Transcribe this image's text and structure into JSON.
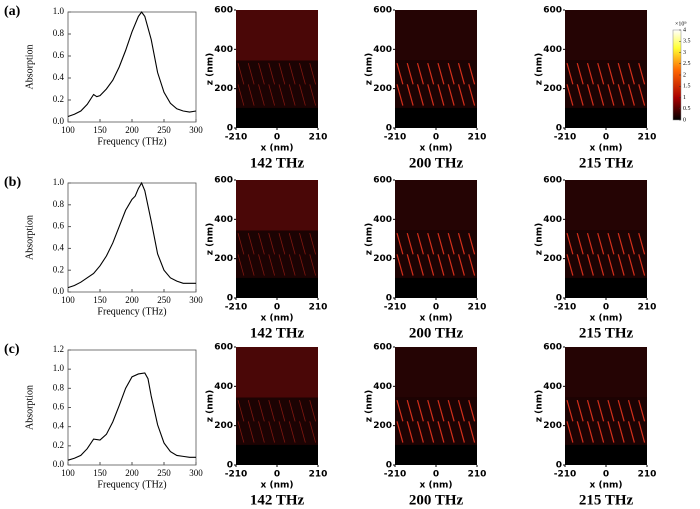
{
  "chart_data": [
    {
      "type": "line",
      "label": "(a)",
      "xlabel": "Frequency (THz)",
      "ylabel": "Absorption",
      "x": [
        100,
        110,
        120,
        130,
        140,
        145,
        150,
        160,
        170,
        180,
        190,
        200,
        210,
        215,
        220,
        230,
        240,
        250,
        260,
        270,
        280,
        290,
        300
      ],
      "values": [
        0.05,
        0.07,
        0.1,
        0.16,
        0.25,
        0.23,
        0.24,
        0.3,
        0.38,
        0.5,
        0.65,
        0.82,
        0.96,
        1.0,
        0.96,
        0.75,
        0.45,
        0.27,
        0.17,
        0.12,
        0.1,
        0.09,
        0.1
      ],
      "color": "#000000",
      "xlim": [
        100,
        300
      ],
      "xticks": [
        100,
        150,
        200,
        250,
        300
      ],
      "ylim": [
        0,
        1
      ],
      "yticks": [
        {
          "value": 0,
          "label": "0.0"
        },
        0.2,
        0.4,
        0.6,
        0.8,
        {
          "value": 1,
          "label": "1.0"
        }
      ]
    },
    {
      "type": "field-map",
      "title": "142 THz",
      "xlabel": "x (nm)",
      "ylabel": "z (nm)",
      "xlim": [
        -210,
        210
      ],
      "xticks": [
        -210,
        0,
        210
      ],
      "ylim": [
        0,
        600
      ],
      "yticks": [
        0,
        200,
        400,
        600
      ]
    },
    {
      "type": "field-map",
      "title": "200 THz",
      "xlabel": "x (nm)",
      "ylabel": "z (nm)",
      "xlim": [
        -210,
        210
      ],
      "xticks": [
        -210,
        0,
        210
      ],
      "ylim": [
        0,
        600
      ],
      "yticks": [
        0,
        200,
        400,
        600
      ]
    },
    {
      "type": "field-map",
      "title": "215 THz",
      "xlabel": "x (nm)",
      "ylabel": "z (nm)",
      "xlim": [
        -210,
        210
      ],
      "xticks": [
        -210,
        0,
        210
      ],
      "ylim": [
        0,
        600
      ],
      "yticks": [
        0,
        200,
        400,
        600
      ]
    },
    {
      "type": "line",
      "label": "(b)",
      "xlabel": "Frequency (THz)",
      "ylabel": "Absorption",
      "x": [
        100,
        110,
        120,
        130,
        140,
        150,
        160,
        170,
        180,
        190,
        200,
        205,
        210,
        215,
        220,
        230,
        240,
        250,
        260,
        270,
        280,
        290,
        300
      ],
      "values": [
        0.04,
        0.06,
        0.09,
        0.13,
        0.17,
        0.24,
        0.33,
        0.45,
        0.6,
        0.75,
        0.85,
        0.88,
        0.95,
        1.0,
        0.93,
        0.65,
        0.35,
        0.2,
        0.13,
        0.1,
        0.08,
        0.08,
        0.08
      ],
      "color": "#000000",
      "xlim": [
        100,
        300
      ],
      "xticks": [
        100,
        150,
        200,
        250,
        300
      ],
      "ylim": [
        0,
        1
      ],
      "yticks": [
        {
          "value": 0,
          "label": "0.0"
        },
        0.2,
        0.4,
        0.6,
        0.8,
        {
          "value": 1,
          "label": "1.0"
        }
      ]
    },
    {
      "type": "field-map",
      "title": "142 THz",
      "xlabel": "x (nm)",
      "ylabel": "z (nm)",
      "xlim": [
        -210,
        210
      ],
      "xticks": [
        -210,
        0,
        210
      ],
      "ylim": [
        0,
        600
      ],
      "yticks": [
        0,
        200,
        400,
        600
      ]
    },
    {
      "type": "field-map",
      "title": "200 THz",
      "xlabel": "x (nm)",
      "ylabel": "z (nm)",
      "xlim": [
        -210,
        210
      ],
      "xticks": [
        -210,
        0,
        210
      ],
      "ylim": [
        0,
        600
      ],
      "yticks": [
        0,
        200,
        400,
        600
      ]
    },
    {
      "type": "field-map",
      "title": "215 THz",
      "xlabel": "x (nm)",
      "ylabel": "z (nm)",
      "xlim": [
        -210,
        210
      ],
      "xticks": [
        -210,
        0,
        210
      ],
      "ylim": [
        0,
        600
      ],
      "yticks": [
        0,
        200,
        400,
        600
      ]
    },
    {
      "type": "line",
      "label": "(c)",
      "xlabel": "Frequency (THz)",
      "ylabel": "Absorption",
      "x": [
        100,
        110,
        120,
        130,
        140,
        150,
        160,
        170,
        180,
        190,
        200,
        210,
        220,
        225,
        230,
        240,
        250,
        260,
        270,
        280,
        290,
        300
      ],
      "values": [
        0.05,
        0.07,
        0.1,
        0.17,
        0.27,
        0.26,
        0.32,
        0.45,
        0.62,
        0.8,
        0.92,
        0.95,
        0.96,
        0.9,
        0.72,
        0.42,
        0.23,
        0.14,
        0.1,
        0.09,
        0.08,
        0.08
      ],
      "color": "#000000",
      "xlim": [
        100,
        300
      ],
      "xticks": [
        100,
        150,
        200,
        250,
        300
      ],
      "ylim": [
        0,
        1.2
      ],
      "yticks": [
        {
          "value": 0,
          "label": "0.0"
        },
        0.2,
        0.4,
        0.6,
        0.8,
        {
          "value": 1,
          "label": "1.0"
        },
        1.2
      ]
    },
    {
      "type": "field-map",
      "title": "142 THz",
      "xlabel": "x (nm)",
      "ylabel": "z (nm)",
      "xlim": [
        -210,
        210
      ],
      "xticks": [
        -210,
        0,
        210
      ],
      "ylim": [
        0,
        600
      ],
      "yticks": [
        0,
        200,
        400,
        600
      ]
    },
    {
      "type": "field-map",
      "title": "200 THz",
      "xlabel": "x (nm)",
      "ylabel": "z (nm)",
      "xlim": [
        -210,
        210
      ],
      "xticks": [
        -210,
        0,
        210
      ],
      "ylim": [
        0,
        600
      ],
      "yticks": [
        0,
        200,
        400,
        600
      ]
    },
    {
      "type": "field-map",
      "title": "215 THz",
      "xlabel": "x (nm)",
      "ylabel": "z (nm)",
      "xlim": [
        -210,
        210
      ],
      "xticks": [
        -210,
        0,
        210
      ],
      "ylim": [
        0,
        600
      ],
      "yticks": [
        0,
        200,
        400,
        600
      ]
    },
    {
      "type": "colorbar",
      "label": "×10⁹",
      "ylim": [
        0,
        4
      ],
      "yticks": [
        0,
        0.5,
        1,
        1.5,
        2,
        2.5,
        3,
        3.5,
        4
      ]
    }
  ]
}
